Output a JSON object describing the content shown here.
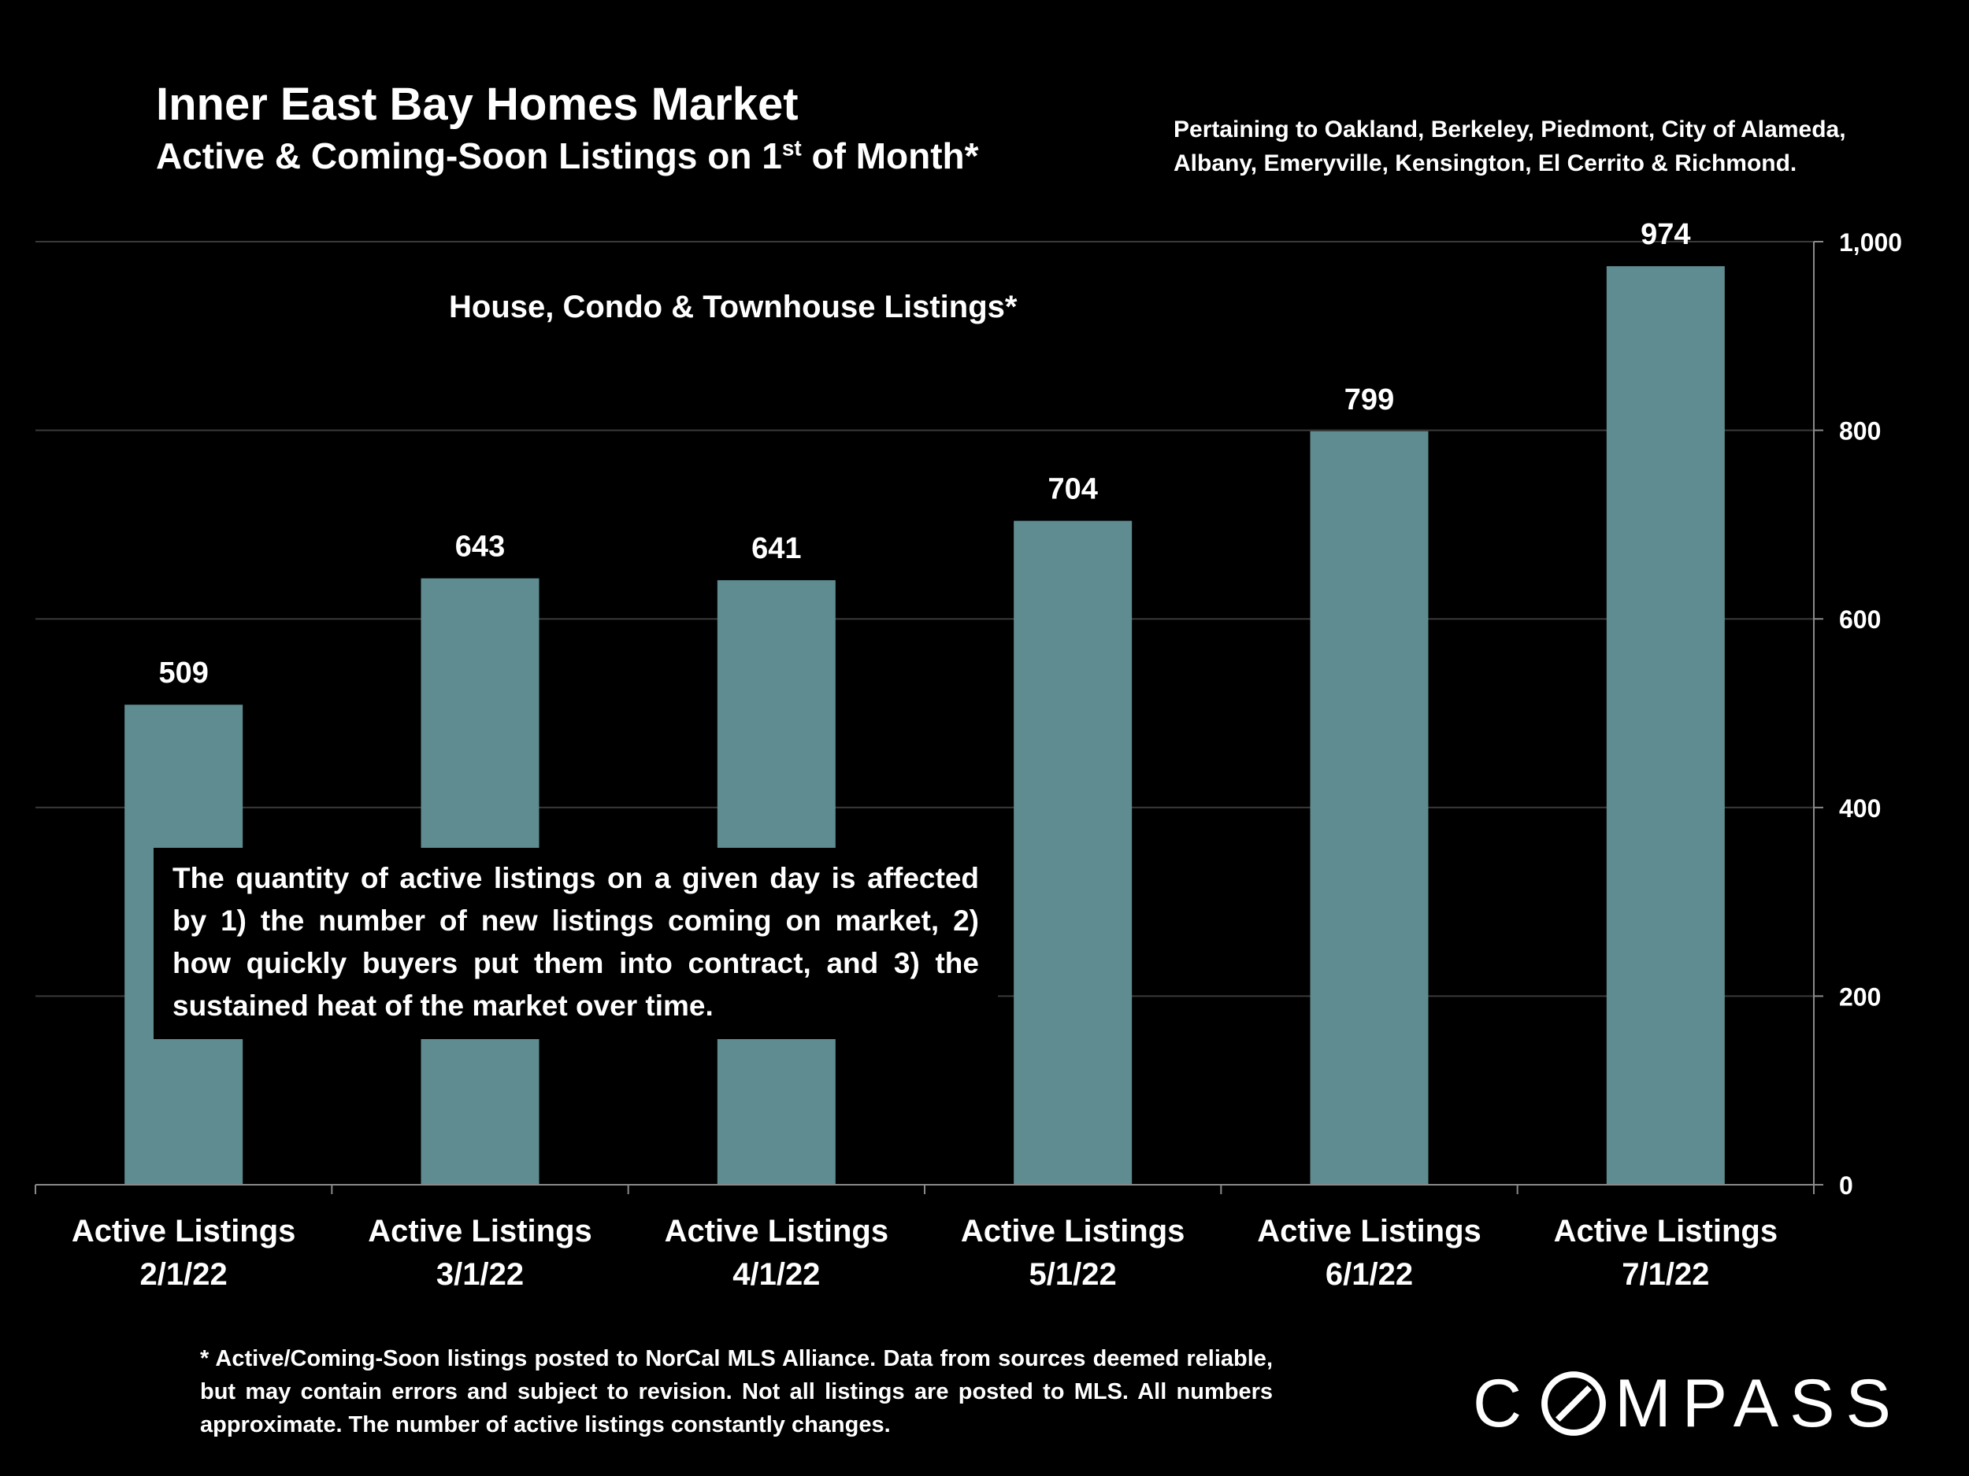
{
  "header": {
    "title": "Inner East Bay Homes Market",
    "subtitle_main": "Active & Coming-Soon Listings on 1",
    "subtitle_sup": "st",
    "subtitle_end": " of Month*",
    "region_line1": "Pertaining to Oakland, Berkeley, Piedmont, City of Alameda,",
    "region_line2": "Albany, Emeryville, Kensington, El Cerrito & Richmond."
  },
  "chart_data": {
    "type": "bar",
    "series_label": "House, Condo & Townhouse Listings*",
    "categories": [
      [
        "Active Listings",
        "2/1/22"
      ],
      [
        "Active Listings",
        "3/1/22"
      ],
      [
        "Active Listings",
        "4/1/22"
      ],
      [
        "Active Listings",
        "5/1/22"
      ],
      [
        "Active Listings",
        "6/1/22"
      ],
      [
        "Active Listings",
        "7/1/22"
      ]
    ],
    "values": [
      509,
      643,
      641,
      704,
      799,
      974
    ],
    "data_labels": [
      "509",
      "643",
      "641",
      "704",
      "799",
      "974"
    ],
    "ylim": [
      0,
      1000
    ],
    "y_ticks": [
      0,
      200,
      400,
      600,
      800,
      1000
    ],
    "y_tick_labels": [
      "0",
      "200",
      "400",
      "600",
      "800",
      "1,000"
    ],
    "y_axis_side": "right",
    "grid": true,
    "bar_color": "#5f8c91"
  },
  "note": "The quantity of active listings on a given day is affected by 1) the number of new listings coming on market, 2) how quickly buyers put them into contract, and 3) the sustained heat of the market over time.",
  "footnote": "* Active/Coming-Soon listings posted to NorCal MLS Alliance.  Data from sources deemed reliable, but may contain errors and subject to revision.  Not all listings are posted to MLS. All numbers approximate. The number of active listings constantly changes.",
  "brand": {
    "logo_left": "C",
    "logo_right": "MPASS"
  }
}
